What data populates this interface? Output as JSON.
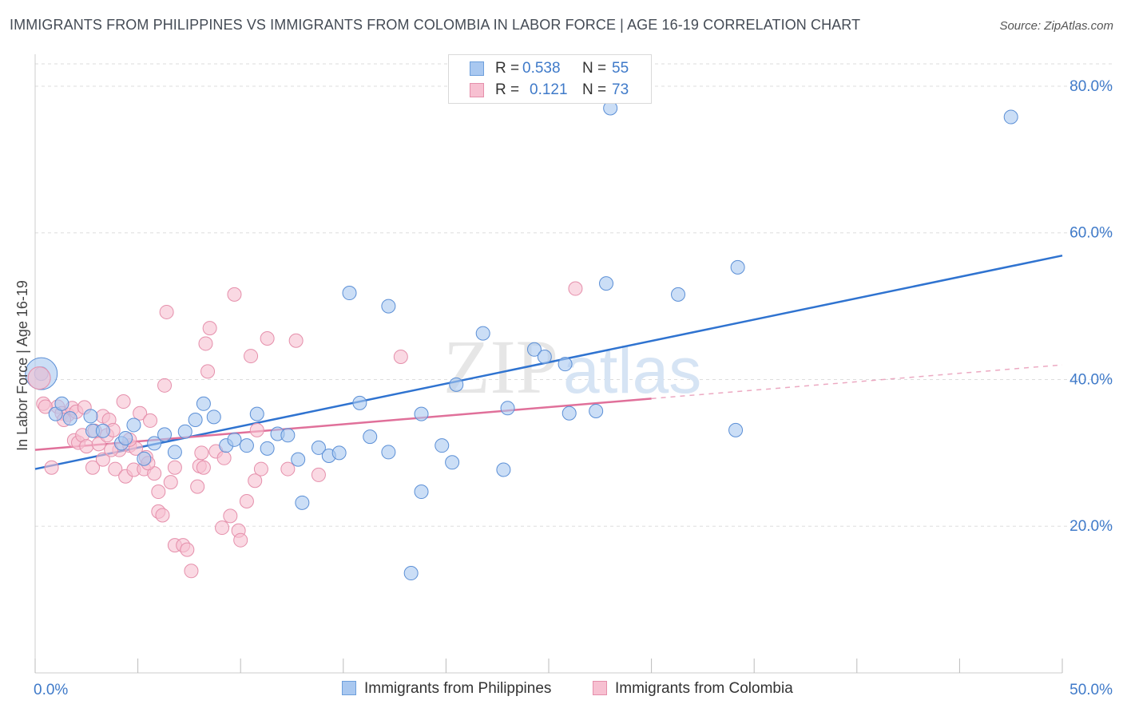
{
  "header": {
    "title": "IMMIGRANTS FROM PHILIPPINES VS IMMIGRANTS FROM COLOMBIA IN LABOR FORCE | AGE 16-19 CORRELATION CHART",
    "source": "Source: ZipAtlas.com"
  },
  "watermark": {
    "zip": "ZIP",
    "atlas": "atlas"
  },
  "stats_legend": [
    {
      "r_label": "R =",
      "r_value": "0.538",
      "n_label": "N =",
      "n_value": "55",
      "color": "#a9c8f0",
      "stroke": "#6d9fdc"
    },
    {
      "r_label": "R =",
      "r_value": "0.121",
      "n_label": "N =",
      "n_value": "73",
      "color": "#f7c0d1",
      "stroke": "#e58fab"
    }
  ],
  "colors": {
    "blue_fill": "#a9c8f0",
    "blue_stroke": "#5b8fd6",
    "blue_line": "#2f73d0",
    "pink_fill": "#f7c0d1",
    "pink_stroke": "#e58fab",
    "pink_line": "#e0709a",
    "grid": "#dddddd",
    "tick_label": "#3f7ac9"
  },
  "chart_data": {
    "type": "scatter",
    "title": "IMMIGRANTS FROM PHILIPPINES VS IMMIGRANTS FROM COLOMBIA IN LABOR FORCE | AGE 16-19 CORRELATION CHART",
    "xlabel": "",
    "ylabel": "In Labor Force | Age 16-19",
    "xlim": [
      0,
      50
    ],
    "ylim": [
      0,
      85
    ],
    "x_tick_labels": [
      "0.0%",
      "50.0%"
    ],
    "y_ticks": [
      20,
      40,
      60,
      80
    ],
    "y_tick_labels": [
      "20.0%",
      "40.0%",
      "60.0%",
      "80.0%"
    ],
    "grid": true,
    "legend_placement": "bottom",
    "series": [
      {
        "name": "Immigrants from Philippines",
        "points": [
          [
            0.3,
            40.8
          ],
          [
            1.0,
            35.3
          ],
          [
            1.7,
            34.7
          ],
          [
            2.8,
            33.0
          ],
          [
            2.7,
            35.0
          ],
          [
            3.3,
            33.0
          ],
          [
            4.2,
            31.3
          ],
          [
            4.4,
            32.0
          ],
          [
            4.8,
            33.8
          ],
          [
            5.3,
            29.2
          ],
          [
            5.8,
            31.3
          ],
          [
            6.3,
            32.5
          ],
          [
            6.8,
            30.1
          ],
          [
            7.3,
            32.9
          ],
          [
            7.8,
            34.5
          ],
          [
            8.2,
            36.7
          ],
          [
            8.7,
            34.9
          ],
          [
            9.3,
            31.0
          ],
          [
            9.7,
            31.8
          ],
          [
            10.3,
            31.0
          ],
          [
            10.8,
            35.3
          ],
          [
            11.3,
            30.6
          ],
          [
            11.8,
            32.6
          ],
          [
            12.3,
            32.4
          ],
          [
            12.8,
            29.1
          ],
          [
            13.0,
            23.2
          ],
          [
            13.8,
            30.7
          ],
          [
            14.3,
            29.6
          ],
          [
            14.8,
            30.0
          ],
          [
            15.3,
            51.8
          ],
          [
            15.8,
            36.8
          ],
          [
            16.3,
            32.2
          ],
          [
            17.2,
            50.0
          ],
          [
            17.2,
            30.1
          ],
          [
            18.3,
            13.6
          ],
          [
            18.8,
            24.7
          ],
          [
            18.8,
            35.3
          ],
          [
            19.8,
            31.0
          ],
          [
            20.3,
            28.7
          ],
          [
            20.5,
            39.3
          ],
          [
            21.8,
            46.3
          ],
          [
            22.8,
            27.7
          ],
          [
            23.0,
            36.1
          ],
          [
            24.3,
            44.1
          ],
          [
            24.8,
            43.1
          ],
          [
            25.8,
            42.1
          ],
          [
            26.0,
            35.4
          ],
          [
            27.3,
            35.7
          ],
          [
            27.8,
            53.1
          ],
          [
            28.0,
            77.0
          ],
          [
            31.3,
            51.6
          ],
          [
            34.1,
            33.1
          ],
          [
            34.2,
            55.3
          ],
          [
            47.5,
            75.8
          ],
          [
            1.3,
            36.7
          ]
        ],
        "trend": {
          "x": [
            0,
            50
          ],
          "y": [
            27.8,
            56.9
          ]
        }
      },
      {
        "name": "Immigrants from Colombia",
        "points": [
          [
            0.4,
            36.7
          ],
          [
            0.8,
            28.0
          ],
          [
            1.1,
            36.3
          ],
          [
            1.3,
            35.4
          ],
          [
            1.6,
            35.2
          ],
          [
            1.8,
            36.1
          ],
          [
            1.9,
            31.7
          ],
          [
            2.1,
            31.4
          ],
          [
            2.3,
            32.4
          ],
          [
            2.5,
            30.9
          ],
          [
            2.8,
            28.0
          ],
          [
            2.9,
            33.0
          ],
          [
            3.1,
            31.2
          ],
          [
            3.3,
            29.1
          ],
          [
            3.3,
            35.0
          ],
          [
            3.5,
            32.4
          ],
          [
            3.6,
            34.5
          ],
          [
            3.8,
            33.1
          ],
          [
            3.9,
            27.8
          ],
          [
            4.1,
            30.4
          ],
          [
            4.3,
            37.0
          ],
          [
            4.4,
            26.8
          ],
          [
            4.6,
            31.0
          ],
          [
            4.8,
            27.7
          ],
          [
            4.9,
            30.6
          ],
          [
            5.1,
            35.4
          ],
          [
            5.3,
            27.8
          ],
          [
            5.4,
            29.4
          ],
          [
            5.6,
            34.4
          ],
          [
            5.8,
            27.2
          ],
          [
            6.0,
            22.0
          ],
          [
            6.0,
            24.7
          ],
          [
            6.2,
            21.5
          ],
          [
            6.3,
            39.2
          ],
          [
            6.4,
            49.2
          ],
          [
            6.6,
            26.0
          ],
          [
            6.8,
            17.4
          ],
          [
            7.2,
            17.4
          ],
          [
            7.4,
            16.8
          ],
          [
            7.6,
            13.9
          ],
          [
            7.9,
            25.4
          ],
          [
            8.0,
            28.2
          ],
          [
            8.1,
            30.0
          ],
          [
            8.3,
            44.9
          ],
          [
            8.4,
            41.1
          ],
          [
            8.5,
            47.0
          ],
          [
            8.8,
            30.2
          ],
          [
            9.1,
            19.8
          ],
          [
            9.2,
            29.3
          ],
          [
            9.5,
            21.4
          ],
          [
            9.7,
            51.6
          ],
          [
            9.9,
            19.4
          ],
          [
            10.0,
            18.1
          ],
          [
            10.3,
            23.4
          ],
          [
            10.5,
            43.2
          ],
          [
            10.7,
            26.2
          ],
          [
            10.8,
            33.1
          ],
          [
            11.0,
            27.8
          ],
          [
            11.3,
            45.6
          ],
          [
            12.3,
            27.8
          ],
          [
            12.7,
            45.3
          ],
          [
            13.8,
            27.0
          ],
          [
            17.8,
            43.1
          ],
          [
            26.3,
            52.4
          ],
          [
            2.0,
            35.6
          ],
          [
            0.5,
            36.3
          ],
          [
            1.4,
            34.5
          ],
          [
            2.4,
            36.2
          ],
          [
            3.7,
            30.4
          ],
          [
            6.8,
            28.0
          ],
          [
            4.6,
            31.8
          ],
          [
            5.5,
            28.6
          ],
          [
            8.2,
            28.0
          ]
        ],
        "trend": {
          "x": [
            0,
            30
          ],
          "y": [
            30.4,
            37.4
          ]
        },
        "trend_extension": {
          "x": [
            30,
            50
          ],
          "y": [
            37.4,
            42.0
          ]
        }
      }
    ],
    "bubble_large_points": [
      {
        "series": "Immigrants from Philippines",
        "x": 0.3,
        "y": 40.8
      },
      {
        "series": "Immigrants from Colombia",
        "x": 0.2,
        "y": 40.2
      }
    ]
  }
}
